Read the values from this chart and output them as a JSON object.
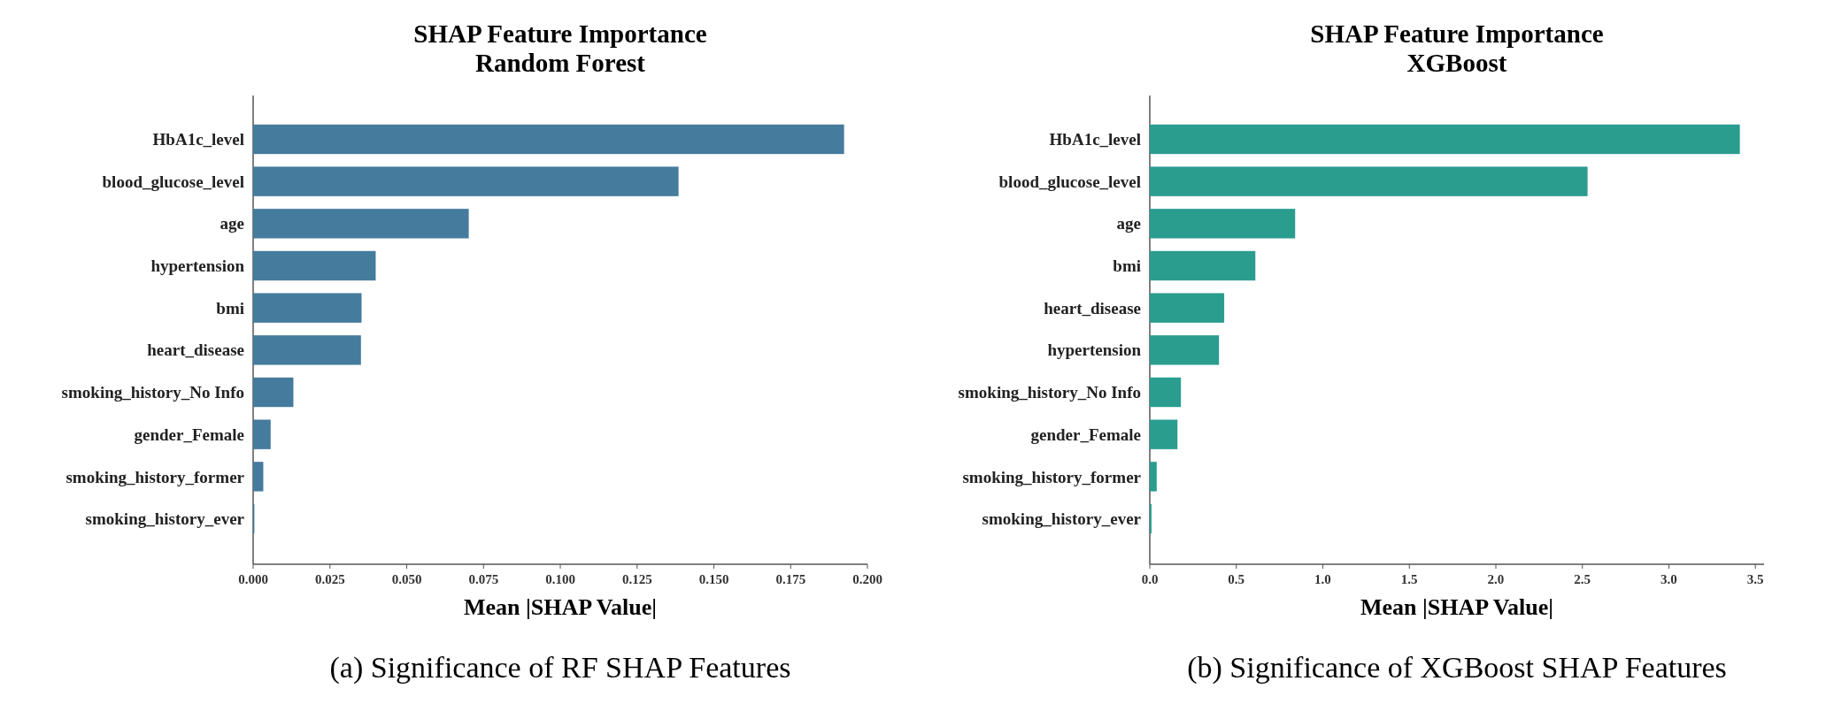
{
  "chart_data": [
    {
      "type": "bar",
      "orientation": "horizontal",
      "title": "SHAP Feature Importance\nRandom Forest",
      "xlabel": "Mean |SHAP Value|",
      "categories": [
        "HbA1c_level",
        "blood_glucose_level",
        "age",
        "hypertension",
        "bmi",
        "heart_disease",
        "smoking_history_No Info",
        "gender_Female",
        "smoking_history_former",
        "smoking_history_ever"
      ],
      "values": [
        0.1924,
        0.1385,
        0.0702,
        0.0399,
        0.0353,
        0.0351,
        0.0131,
        0.0057,
        0.0033,
        0.0004
      ],
      "color": "#457b9d",
      "xlim": [
        0,
        0.2
      ],
      "xticks": [
        {
          "value": 0,
          "label": "0.000"
        },
        {
          "value": 0.025,
          "label": "0.025"
        },
        {
          "value": 0.05,
          "label": "0.050"
        },
        {
          "value": 0.075,
          "label": "0.075"
        },
        {
          "value": 0.1,
          "label": "0.100"
        },
        {
          "value": 0.125,
          "label": "0.125"
        },
        {
          "value": 0.15,
          "label": "0.150"
        },
        {
          "value": 0.175,
          "label": "0.175"
        },
        {
          "value": 0.2,
          "label": "0.200"
        }
      ],
      "grid": false,
      "annotations": [
        "(a) Significance of RF SHAP Features"
      ]
    },
    {
      "type": "bar",
      "orientation": "horizontal",
      "title": "SHAP Feature Importance\nXGBoost",
      "xlabel": "Mean |SHAP Value|",
      "categories": [
        "HbA1c_level",
        "blood_glucose_level",
        "age",
        "bmi",
        "heart_disease",
        "hypertension",
        "smoking_history_No Info",
        "gender_Female",
        "smoking_history_former",
        "smoking_history_ever"
      ],
      "values": [
        3.41,
        2.53,
        0.84,
        0.61,
        0.43,
        0.4,
        0.18,
        0.16,
        0.04,
        0.01
      ],
      "color": "#2a9d8f",
      "xlim": [
        0,
        3.55
      ],
      "xticks": [
        {
          "value": 0,
          "label": "0.0"
        },
        {
          "value": 0.5,
          "label": "0.5"
        },
        {
          "value": 1,
          "label": "1.0"
        },
        {
          "value": 1.5,
          "label": "1.5"
        },
        {
          "value": 2,
          "label": "2.0"
        },
        {
          "value": 2.5,
          "label": "2.5"
        },
        {
          "value": 3,
          "label": "3.0"
        },
        {
          "value": 3.5,
          "label": "3.5"
        }
      ],
      "grid": false,
      "annotations": [
        "(b) Significance of XGBoost SHAP Features"
      ]
    }
  ]
}
